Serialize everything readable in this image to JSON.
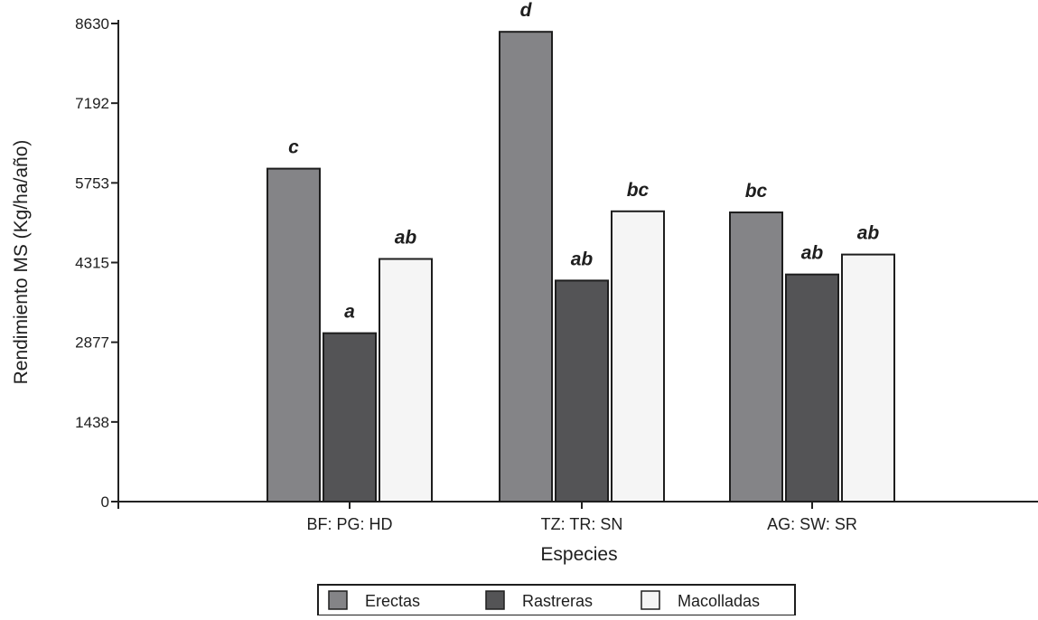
{
  "chart_data": {
    "type": "bar",
    "xlabel": "Especies",
    "ylabel": "Rendimiento MS (Kg/ha/año)",
    "categories": [
      "BF: PG: HD",
      "TZ: TR: SN",
      "AG: SW: SR"
    ],
    "ylim": [
      0,
      8630
    ],
    "yticks": [
      0,
      1438,
      2877,
      4315,
      5753,
      7192,
      8630
    ],
    "grid": false,
    "legend_position": "bottom-center",
    "series": [
      {
        "name": "Erectas",
        "color": "#848487",
        "values": [
          6010,
          8480,
          5220
        ],
        "labels": [
          "c",
          "d",
          "bc"
        ]
      },
      {
        "name": "Rastreras",
        "color": "#545456",
        "values": [
          3040,
          3990,
          4100
        ],
        "labels": [
          "a",
          "ab",
          "ab"
        ]
      },
      {
        "name": "Macolladas",
        "color": "#f5f5f5",
        "values": [
          4380,
          5240,
          4460
        ],
        "labels": [
          "ab",
          "bc",
          "ab"
        ]
      }
    ]
  }
}
